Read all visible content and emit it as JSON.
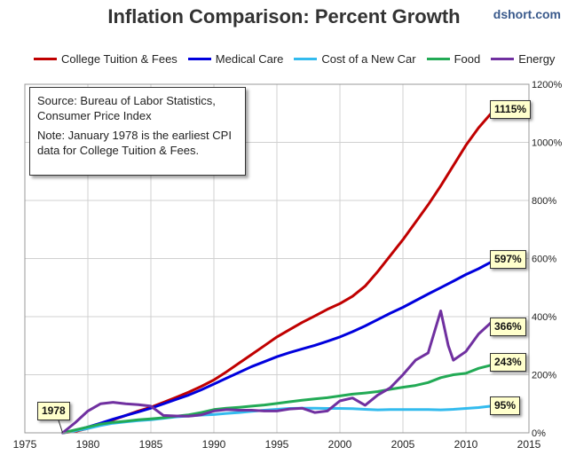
{
  "header": {
    "title": "Inflation Comparison: Percent Growth",
    "source_tag": "dshort.com"
  },
  "note": {
    "line1": "Source: Bureau of Labor Statistics,",
    "line2": "Consumer Price Index",
    "line3": "Note: January 1978  is the earliest CPI",
    "line4": "data for College Tuition & Fees."
  },
  "start_label": "1978",
  "chart_data": {
    "type": "line",
    "title": "Inflation Comparison: Percent Growth",
    "xlabel": "",
    "ylabel": "",
    "xlim": [
      1975,
      2015
    ],
    "ylim": [
      0,
      1200
    ],
    "x_ticks": [
      1975,
      1980,
      1985,
      1990,
      1995,
      2000,
      2005,
      2010,
      2015
    ],
    "y_ticks": [
      0,
      200,
      400,
      600,
      800,
      1000,
      1200
    ],
    "y_tick_labels": [
      "0%",
      "200%",
      "400%",
      "600%",
      "800%",
      "1000%",
      "1200%"
    ],
    "grid": true,
    "legend_position": "top",
    "series": [
      {
        "name": "College Tuition & Fees",
        "color": "#c00000",
        "end_label": "1115%",
        "points": [
          [
            1978,
            0
          ],
          [
            1979,
            5
          ],
          [
            1980,
            15
          ],
          [
            1981,
            28
          ],
          [
            1982,
            45
          ],
          [
            1983,
            60
          ],
          [
            1984,
            75
          ],
          [
            1985,
            88
          ],
          [
            1986,
            105
          ],
          [
            1987,
            122
          ],
          [
            1988,
            140
          ],
          [
            1989,
            160
          ],
          [
            1990,
            182
          ],
          [
            1991,
            210
          ],
          [
            1992,
            240
          ],
          [
            1993,
            270
          ],
          [
            1994,
            300
          ],
          [
            1995,
            330
          ],
          [
            1996,
            355
          ],
          [
            1997,
            380
          ],
          [
            1998,
            402
          ],
          [
            1999,
            425
          ],
          [
            2000,
            445
          ],
          [
            2001,
            470
          ],
          [
            2002,
            505
          ],
          [
            2003,
            555
          ],
          [
            2004,
            610
          ],
          [
            2005,
            665
          ],
          [
            2006,
            725
          ],
          [
            2007,
            785
          ],
          [
            2008,
            850
          ],
          [
            2009,
            920
          ],
          [
            2010,
            990
          ],
          [
            2011,
            1050
          ],
          [
            2012,
            1100
          ],
          [
            2012.5,
            1115
          ]
        ]
      },
      {
        "name": "Medical Care",
        "color": "#0000dd",
        "end_label": "597%",
        "points": [
          [
            1978,
            0
          ],
          [
            1979,
            8
          ],
          [
            1980,
            20
          ],
          [
            1981,
            33
          ],
          [
            1982,
            47
          ],
          [
            1983,
            60
          ],
          [
            1984,
            72
          ],
          [
            1985,
            85
          ],
          [
            1986,
            100
          ],
          [
            1987,
            115
          ],
          [
            1988,
            130
          ],
          [
            1989,
            148
          ],
          [
            1990,
            168
          ],
          [
            1991,
            188
          ],
          [
            1992,
            208
          ],
          [
            1993,
            228
          ],
          [
            1994,
            245
          ],
          [
            1995,
            262
          ],
          [
            1996,
            276
          ],
          [
            1997,
            289
          ],
          [
            1998,
            301
          ],
          [
            1999,
            315
          ],
          [
            2000,
            330
          ],
          [
            2001,
            348
          ],
          [
            2002,
            368
          ],
          [
            2003,
            390
          ],
          [
            2004,
            412
          ],
          [
            2005,
            432
          ],
          [
            2006,
            455
          ],
          [
            2007,
            478
          ],
          [
            2008,
            500
          ],
          [
            2009,
            522
          ],
          [
            2010,
            545
          ],
          [
            2011,
            565
          ],
          [
            2012,
            588
          ],
          [
            2012.5,
            597
          ]
        ]
      },
      {
        "name": "Cost of a New Car",
        "color": "#33bbee",
        "end_label": "95%",
        "points": [
          [
            1978,
            0
          ],
          [
            1979,
            7
          ],
          [
            1980,
            15
          ],
          [
            1981,
            25
          ],
          [
            1982,
            33
          ],
          [
            1983,
            38
          ],
          [
            1984,
            42
          ],
          [
            1985,
            45
          ],
          [
            1986,
            50
          ],
          [
            1987,
            55
          ],
          [
            1988,
            58
          ],
          [
            1989,
            61
          ],
          [
            1990,
            63
          ],
          [
            1991,
            67
          ],
          [
            1992,
            70
          ],
          [
            1993,
            74
          ],
          [
            1994,
            78
          ],
          [
            1995,
            81
          ],
          [
            1996,
            84
          ],
          [
            1997,
            85
          ],
          [
            1998,
            85
          ],
          [
            1999,
            84
          ],
          [
            2000,
            84
          ],
          [
            2001,
            83
          ],
          [
            2002,
            81
          ],
          [
            2003,
            79
          ],
          [
            2004,
            80
          ],
          [
            2005,
            80
          ],
          [
            2006,
            80
          ],
          [
            2007,
            80
          ],
          [
            2008,
            79
          ],
          [
            2009,
            81
          ],
          [
            2010,
            84
          ],
          [
            2011,
            87
          ],
          [
            2012,
            92
          ],
          [
            2012.5,
            95
          ]
        ]
      },
      {
        "name": "Food",
        "color": "#22aa55",
        "end_label": "243%",
        "points": [
          [
            1978,
            0
          ],
          [
            1979,
            10
          ],
          [
            1980,
            20
          ],
          [
            1981,
            30
          ],
          [
            1982,
            36
          ],
          [
            1983,
            40
          ],
          [
            1984,
            45
          ],
          [
            1985,
            48
          ],
          [
            1986,
            52
          ],
          [
            1987,
            57
          ],
          [
            1988,
            62
          ],
          [
            1989,
            70
          ],
          [
            1990,
            80
          ],
          [
            1991,
            85
          ],
          [
            1992,
            88
          ],
          [
            1993,
            92
          ],
          [
            1994,
            96
          ],
          [
            1995,
            101
          ],
          [
            1996,
            107
          ],
          [
            1997,
            112
          ],
          [
            1998,
            117
          ],
          [
            1999,
            121
          ],
          [
            2000,
            127
          ],
          [
            2001,
            133
          ],
          [
            2002,
            137
          ],
          [
            2003,
            142
          ],
          [
            2004,
            150
          ],
          [
            2005,
            157
          ],
          [
            2006,
            163
          ],
          [
            2007,
            173
          ],
          [
            2008,
            190
          ],
          [
            2009,
            200
          ],
          [
            2010,
            205
          ],
          [
            2011,
            222
          ],
          [
            2012,
            233
          ],
          [
            2012.5,
            243
          ]
        ]
      },
      {
        "name": "Energy",
        "color": "#7030a0",
        "end_label": "366%",
        "points": [
          [
            1978,
            0
          ],
          [
            1979,
            35
          ],
          [
            1980,
            75
          ],
          [
            1981,
            100
          ],
          [
            1982,
            105
          ],
          [
            1983,
            100
          ],
          [
            1984,
            97
          ],
          [
            1985,
            92
          ],
          [
            1986,
            60
          ],
          [
            1987,
            58
          ],
          [
            1988,
            57
          ],
          [
            1989,
            62
          ],
          [
            1990,
            75
          ],
          [
            1991,
            80
          ],
          [
            1992,
            78
          ],
          [
            1993,
            78
          ],
          [
            1994,
            75
          ],
          [
            1995,
            75
          ],
          [
            1996,
            82
          ],
          [
            1997,
            85
          ],
          [
            1998,
            70
          ],
          [
            1999,
            75
          ],
          [
            2000,
            110
          ],
          [
            2001,
            120
          ],
          [
            2002,
            95
          ],
          [
            2003,
            130
          ],
          [
            2004,
            155
          ],
          [
            2005,
            200
          ],
          [
            2006,
            250
          ],
          [
            2007,
            275
          ],
          [
            2008,
            420
          ],
          [
            2008.6,
            300
          ],
          [
            2009,
            250
          ],
          [
            2010,
            280
          ],
          [
            2011,
            340
          ],
          [
            2012,
            380
          ],
          [
            2012.3,
            390
          ],
          [
            2012.5,
            366
          ]
        ]
      }
    ]
  }
}
